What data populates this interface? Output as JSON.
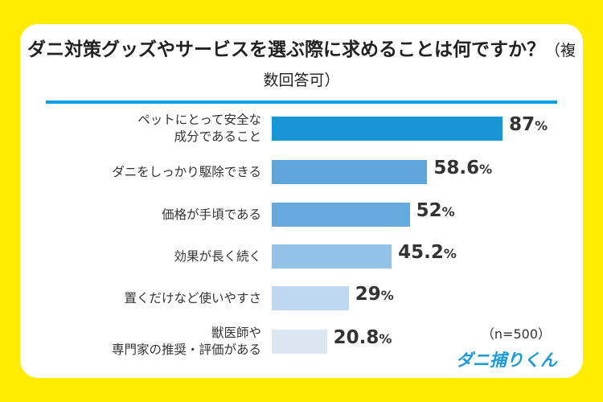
{
  "chart_data": {
    "type": "bar",
    "orientation": "horizontal",
    "title": "ダニ対策グッズやサービスを選ぶ際に求めることは何ですか？",
    "subtitle": "（複数回答可）",
    "categories": [
      "ペットにとって安全な\n成分であること",
      "ダニをしっかり駆除できる",
      "価格が手頃である",
      "効果が長く続く",
      "置くだけなど使いやすさ",
      "獣医師や\n専門家の推奨・評価がある"
    ],
    "values": [
      87,
      58.6,
      52,
      45.2,
      29,
      20.8
    ],
    "value_labels": [
      "87",
      "58.6",
      "52",
      "45.2",
      "29",
      "20.8"
    ],
    "unit": "%",
    "bar_colors": [
      "#1a96d6",
      "#5fa5dc",
      "#65a9dd",
      "#93c2e8",
      "#bdd8f0",
      "#dce7f1"
    ],
    "xlim": [
      0,
      100
    ],
    "grid": false,
    "sample_note": "（n=500）"
  },
  "logo_text": "ダニ捕りくん",
  "colors": {
    "background": "#ffec00",
    "accent": "#00a0e9"
  }
}
